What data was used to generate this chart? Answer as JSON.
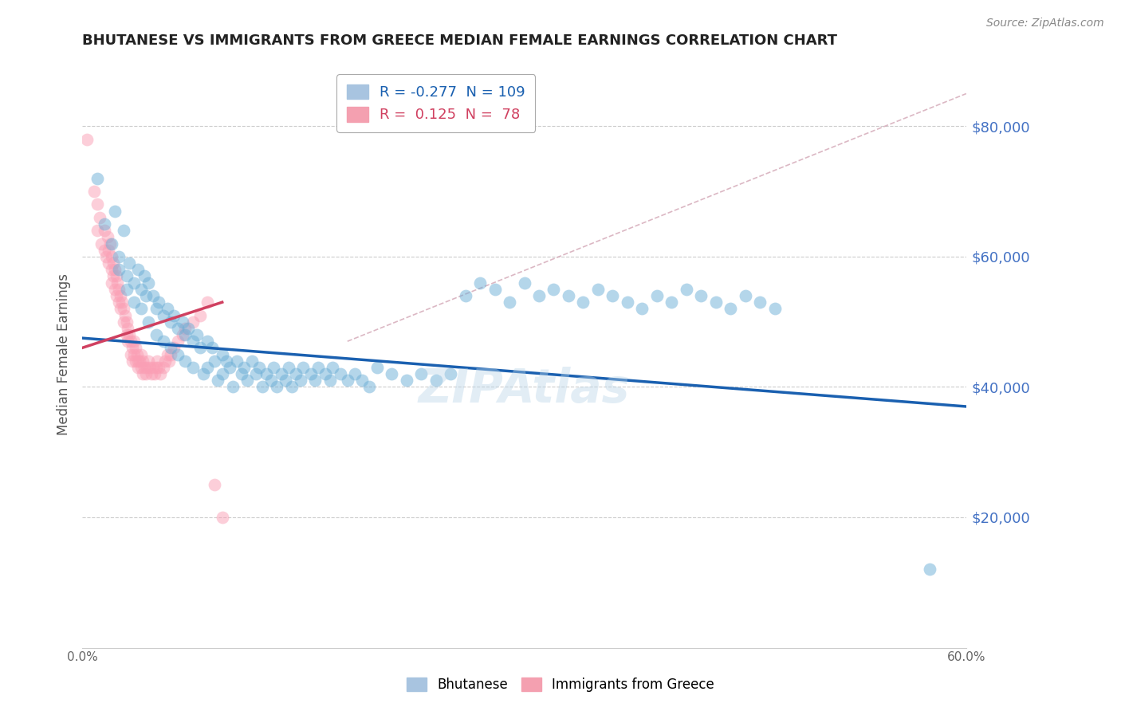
{
  "title": "BHUTANESE VS IMMIGRANTS FROM GREECE MEDIAN FEMALE EARNINGS CORRELATION CHART",
  "source": "Source: ZipAtlas.com",
  "ylabel": "Median Female Earnings",
  "xlim": [
    0.0,
    0.6
  ],
  "ylim": [
    0,
    90000
  ],
  "yticks": [
    20000,
    40000,
    60000,
    80000
  ],
  "ytick_labels": [
    "$20,000",
    "$40,000",
    "$60,000",
    "$80,000"
  ],
  "xticks": [
    0.0,
    0.1,
    0.2,
    0.3,
    0.4,
    0.5,
    0.6
  ],
  "xtick_labels": [
    "0.0%",
    "",
    "",
    "",
    "",
    "",
    "60.0%"
  ],
  "blue_scatter_x": [
    0.01,
    0.015,
    0.02,
    0.022,
    0.025,
    0.025,
    0.028,
    0.03,
    0.03,
    0.032,
    0.035,
    0.035,
    0.038,
    0.04,
    0.04,
    0.042,
    0.043,
    0.045,
    0.045,
    0.048,
    0.05,
    0.05,
    0.052,
    0.055,
    0.055,
    0.058,
    0.06,
    0.06,
    0.062,
    0.065,
    0.065,
    0.068,
    0.07,
    0.07,
    0.072,
    0.075,
    0.075,
    0.078,
    0.08,
    0.082,
    0.085,
    0.085,
    0.088,
    0.09,
    0.092,
    0.095,
    0.095,
    0.098,
    0.1,
    0.102,
    0.105,
    0.108,
    0.11,
    0.112,
    0.115,
    0.118,
    0.12,
    0.122,
    0.125,
    0.128,
    0.13,
    0.132,
    0.135,
    0.138,
    0.14,
    0.142,
    0.145,
    0.148,
    0.15,
    0.155,
    0.158,
    0.16,
    0.165,
    0.168,
    0.17,
    0.175,
    0.18,
    0.185,
    0.19,
    0.195,
    0.2,
    0.21,
    0.22,
    0.23,
    0.24,
    0.25,
    0.26,
    0.27,
    0.28,
    0.29,
    0.3,
    0.31,
    0.32,
    0.33,
    0.34,
    0.35,
    0.36,
    0.37,
    0.38,
    0.39,
    0.4,
    0.41,
    0.42,
    0.43,
    0.44,
    0.45,
    0.46,
    0.47,
    0.575
  ],
  "blue_scatter_y": [
    72000,
    65000,
    62000,
    67000,
    60000,
    58000,
    64000,
    57000,
    55000,
    59000,
    56000,
    53000,
    58000,
    55000,
    52000,
    57000,
    54000,
    56000,
    50000,
    54000,
    52000,
    48000,
    53000,
    51000,
    47000,
    52000,
    50000,
    46000,
    51000,
    49000,
    45000,
    50000,
    48000,
    44000,
    49000,
    47000,
    43000,
    48000,
    46000,
    42000,
    47000,
    43000,
    46000,
    44000,
    41000,
    45000,
    42000,
    44000,
    43000,
    40000,
    44000,
    42000,
    43000,
    41000,
    44000,
    42000,
    43000,
    40000,
    42000,
    41000,
    43000,
    40000,
    42000,
    41000,
    43000,
    40000,
    42000,
    41000,
    43000,
    42000,
    41000,
    43000,
    42000,
    41000,
    43000,
    42000,
    41000,
    42000,
    41000,
    40000,
    43000,
    42000,
    41000,
    42000,
    41000,
    42000,
    54000,
    56000,
    55000,
    53000,
    56000,
    54000,
    55000,
    54000,
    53000,
    55000,
    54000,
    53000,
    52000,
    54000,
    53000,
    55000,
    54000,
    53000,
    52000,
    54000,
    53000,
    52000,
    12000
  ],
  "pink_scatter_x": [
    0.003,
    0.008,
    0.01,
    0.01,
    0.012,
    0.013,
    0.015,
    0.015,
    0.016,
    0.017,
    0.018,
    0.018,
    0.019,
    0.02,
    0.02,
    0.02,
    0.021,
    0.021,
    0.022,
    0.022,
    0.023,
    0.023,
    0.024,
    0.025,
    0.025,
    0.026,
    0.026,
    0.027,
    0.028,
    0.028,
    0.029,
    0.03,
    0.03,
    0.031,
    0.031,
    0.032,
    0.033,
    0.033,
    0.034,
    0.034,
    0.035,
    0.035,
    0.036,
    0.036,
    0.037,
    0.038,
    0.038,
    0.039,
    0.04,
    0.04,
    0.041,
    0.041,
    0.042,
    0.043,
    0.044,
    0.045,
    0.046,
    0.047,
    0.048,
    0.049,
    0.05,
    0.051,
    0.052,
    0.053,
    0.055,
    0.056,
    0.058,
    0.059,
    0.06,
    0.062,
    0.065,
    0.068,
    0.07,
    0.075,
    0.08,
    0.085,
    0.09,
    0.095
  ],
  "pink_scatter_y": [
    78000,
    70000,
    68000,
    64000,
    66000,
    62000,
    64000,
    61000,
    60000,
    63000,
    61000,
    59000,
    62000,
    60000,
    58000,
    56000,
    59000,
    57000,
    58000,
    55000,
    57000,
    54000,
    56000,
    55000,
    53000,
    54000,
    52000,
    53000,
    52000,
    50000,
    51000,
    50000,
    48000,
    49000,
    47000,
    48000,
    47000,
    45000,
    46000,
    44000,
    47000,
    45000,
    46000,
    44000,
    45000,
    44000,
    43000,
    44000,
    45000,
    43000,
    44000,
    42000,
    43000,
    42000,
    43000,
    44000,
    43000,
    42000,
    43000,
    42000,
    43000,
    44000,
    43000,
    42000,
    43000,
    44000,
    45000,
    44000,
    45000,
    46000,
    47000,
    48000,
    49000,
    50000,
    51000,
    53000,
    25000,
    20000
  ],
  "blue_line_x": [
    0.0,
    0.6
  ],
  "blue_line_y": [
    47500,
    37000
  ],
  "pink_line_x": [
    0.0,
    0.095
  ],
  "pink_line_y": [
    46000,
    53000
  ],
  "dashed_line_x": [
    0.18,
    0.6
  ],
  "dashed_line_y": [
    47000,
    85000
  ],
  "watermark": "ZIPAtlas",
  "blue_color": "#6baed6",
  "pink_color": "#fa9fb5",
  "blue_line_color": "#1a60b0",
  "pink_line_color": "#d04060",
  "dashed_line_color": "#d0a0b0",
  "axis_color": "#4472c4",
  "grid_color": "#cccccc",
  "title_color": "#222222",
  "source_color": "#888888"
}
